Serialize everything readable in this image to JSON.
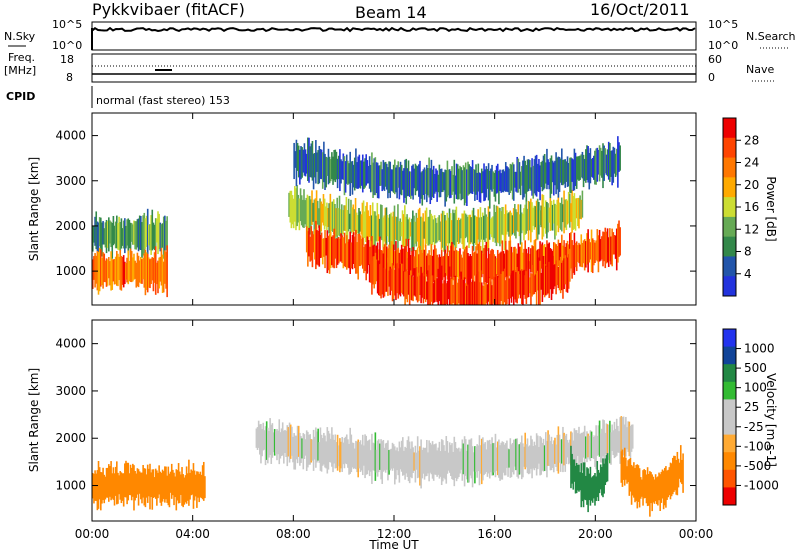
{
  "header": {
    "station": "Pykkvibaer (fitACF)",
    "beam": "Beam 14",
    "date": "16/Oct/2011"
  },
  "top_strip": {
    "left_label": "N.Sky",
    "right_label": "N.Search",
    "left_ticks": [
      "10^5",
      "10^0"
    ],
    "right_ticks": [
      "10^5",
      "10^0"
    ]
  },
  "freq_strip": {
    "left_label_1": "Freq.",
    "left_label_2": "[MHz]",
    "right_label": "Nave",
    "left_ticks": [
      "18",
      "8"
    ],
    "right_ticks": [
      "60",
      "0"
    ]
  },
  "cpid": {
    "label": "CPID",
    "text": "normal (fast stereo) 153"
  },
  "colors": {
    "power": [
      "#2233dd",
      "#2255aa",
      "#33884a",
      "#66aa55",
      "#ccdd33",
      "#ffaa00",
      "#ff7700",
      "#ff4400",
      "#ee0000"
    ],
    "velocity": [
      "#ee0000",
      "#ff5500",
      "#ff8800",
      "#ffaa33",
      "#c8c8c8",
      "#c8c8c8",
      "#33bb33",
      "#228844",
      "#114499",
      "#2233ee"
    ]
  },
  "chart_data": [
    {
      "type": "heatmap",
      "quantity": "power",
      "ylabel": "Slant Range [km]",
      "xlabel": "",
      "y_ticks": [
        "1000",
        "2000",
        "3000",
        "4000"
      ],
      "ylim": [
        250,
        4500
      ],
      "x_ticks": [
        "00:00",
        "04:00",
        "08:00",
        "12:00",
        "16:00",
        "20:00",
        "00:00"
      ],
      "colorbar": {
        "label": "Power [dB]",
        "ticks": [
          "4",
          "8",
          "12",
          "16",
          "20",
          "24",
          "28"
        ]
      },
      "bands": [
        {
          "start_h": 7.8,
          "end_h": 19.5,
          "range_km": 1900,
          "value_db": 14
        },
        {
          "start_h": 8.5,
          "end_h": 21.0,
          "range_km": 1100,
          "value_db": 24
        },
        {
          "start_h": 0.0,
          "end_h": 3.0,
          "range_km": 1800,
          "value_db": 10
        },
        {
          "start_h": 0.0,
          "end_h": 3.0,
          "range_km": 1000,
          "value_db": 22
        },
        {
          "start_h": 11.0,
          "end_h": 19.0,
          "range_km": 500,
          "value_db": 26
        },
        {
          "start_h": 8.0,
          "end_h": 21.0,
          "range_km": 2950,
          "value_db": 6
        }
      ]
    },
    {
      "type": "heatmap",
      "quantity": "velocity",
      "ylabel": "Slant Range [km]",
      "xlabel": "Time UT",
      "y_ticks": [
        "1000",
        "2000",
        "3000",
        "4000"
      ],
      "ylim": [
        250,
        4500
      ],
      "x_ticks": [
        "00:00",
        "04:00",
        "08:00",
        "12:00",
        "16:00",
        "20:00",
        "00:00"
      ],
      "colorbar": {
        "label": "Velocity [m s-1]",
        "ticks": [
          "1000",
          "500",
          "100",
          "25",
          "-25",
          "-100",
          "-500",
          "-1000"
        ]
      },
      "bands": [
        {
          "start_h": 6.5,
          "end_h": 21.5,
          "range_km": 1500,
          "value_ms": 0
        },
        {
          "start_h": 0.0,
          "end_h": 4.5,
          "range_km": 1000,
          "value_ms": -200
        },
        {
          "start_h": 19.0,
          "end_h": 20.5,
          "range_km": 900,
          "value_ms": 150
        },
        {
          "start_h": 21.0,
          "end_h": 23.5,
          "range_km": 900,
          "value_ms": -250
        }
      ]
    }
  ]
}
